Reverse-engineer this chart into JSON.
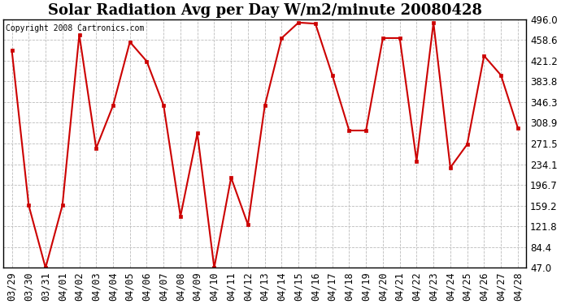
{
  "title": "Solar Radiation Avg per Day W/m2/minute 20080428",
  "copyright": "Copyright 2008 Cartronics.com",
  "dates": [
    "03/29",
    "03/30",
    "03/31",
    "04/01",
    "04/02",
    "04/03",
    "04/04",
    "04/05",
    "04/06",
    "04/07",
    "04/08",
    "04/09",
    "04/10",
    "04/11",
    "04/12",
    "04/13",
    "04/14",
    "04/15",
    "04/16",
    "04/17",
    "04/18",
    "04/19",
    "04/20",
    "04/21",
    "04/22",
    "04/23",
    "04/24",
    "04/25",
    "04/26",
    "04/27",
    "04/28"
  ],
  "values": [
    440,
    160,
    47,
    160,
    468,
    263,
    340,
    455,
    420,
    340,
    140,
    290,
    47,
    210,
    125,
    340,
    462,
    490,
    488,
    395,
    295,
    295,
    462,
    462,
    240,
    490,
    228,
    270,
    430,
    395,
    300
  ],
  "ylim": [
    47.0,
    496.0
  ],
  "yticks": [
    47.0,
    84.4,
    121.8,
    159.2,
    196.7,
    234.1,
    271.5,
    308.9,
    346.3,
    383.8,
    421.2,
    458.6,
    496.0
  ],
  "line_color": "#cc0000",
  "marker": "s",
  "marker_color": "#cc0000",
  "marker_size": 3,
  "grid_color": "#bbbbbb",
  "bg_color": "#ffffff",
  "title_fontsize": 13,
  "tick_fontsize": 8.5,
  "copyright_fontsize": 7
}
